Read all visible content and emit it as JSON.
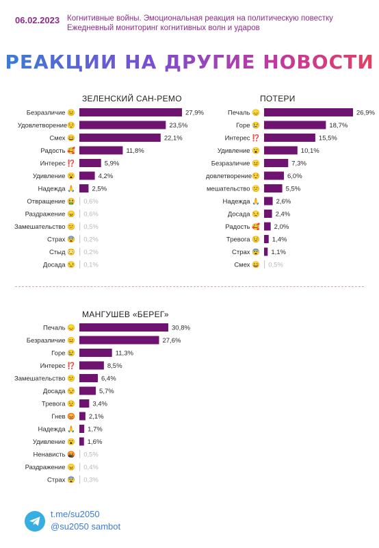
{
  "header": {
    "date": "06.02.2023",
    "line1": "Когнитивные войны. Эмоциональная реакция на политическую повестку",
    "line2": "Ежедневный мониторинг когнитивных волн и ударов"
  },
  "main_title": "РЕАКЦИИ НА ДРУГИЕ НОВОСТИ",
  "colors": {
    "bar": "#6e1470",
    "accent": "#8e2c8c",
    "faint_bar": "#cccccc"
  },
  "footer": {
    "link1": "t.me/su2050",
    "link2": "@su2050 sambot",
    "icon": "telegram-icon"
  },
  "chart_data": [
    {
      "type": "bar",
      "orientation": "horizontal",
      "title": "ЗЕЛЕНСКИЙ САН-РЕМО",
      "categories": [
        "Безразличие 😐",
        "Удовлетворение😌",
        "Смех 😄",
        "Радость 🥰",
        "Интерес ⁉️",
        "Удивление 😮",
        "Надежда 🙏",
        "Отвращение 🤮",
        "Раздражение 😠",
        "Замешательство 😕",
        "Страх 😨",
        "Стыд 😳",
        "Досада 😒"
      ],
      "values": [
        27.9,
        23.5,
        22.1,
        11.8,
        5.9,
        4.2,
        2.5,
        0.6,
        0.6,
        0.5,
        0.2,
        0.2,
        0.1
      ],
      "value_labels": [
        "27,9%",
        "23,5%",
        "22,1%",
        "11,8%",
        "5,9%",
        "4,2%",
        "2,5%",
        "0,6%",
        "0,6%",
        "0,5%",
        "0,2%",
        "0,2%",
        "0,1%"
      ]
    },
    {
      "type": "bar",
      "orientation": "horizontal",
      "title": "ПОТЕРИ",
      "categories": [
        "Печаль 😞",
        "Горе 😢",
        "Интерес ⁉️",
        "Удивление 😮",
        "Безразличие 😐",
        "довлетворение😌",
        "мешательство 😕",
        "Надежда 🙏",
        "Досада 😒",
        "Радость 🥰",
        "Тревога 😟",
        "Страх 😨",
        "Смех 😄"
      ],
      "values": [
        26.9,
        18.7,
        15.5,
        10.1,
        7.3,
        6.0,
        5.5,
        2.6,
        2.4,
        2.0,
        1.4,
        1.1,
        0.5
      ],
      "value_labels": [
        "26,9%",
        "18,7%",
        "15,5%",
        "10,1%",
        "7,3%",
        "6,0%",
        "5,5%",
        "2,6%",
        "2,4%",
        "2,0%",
        "1,4%",
        "1,1%",
        "0,5%"
      ]
    },
    {
      "type": "bar",
      "orientation": "horizontal",
      "title": "МАНГУШЕВ «БЕРЕГ»",
      "categories": [
        "Печаль 😞",
        "Безразличие 😐",
        "Горе 😢",
        "Интерес ⁉️",
        "Замешательство 😕",
        "Досада 😒",
        "Тревога 😟",
        "Гнев 😡",
        "Надежда 🙏",
        "Удивление 😮",
        "Ненависть 🤬",
        "Раздражение 😠",
        "Страх 😨"
      ],
      "values": [
        30.8,
        27.6,
        11.3,
        8.5,
        6.4,
        5.7,
        3.4,
        2.1,
        1.7,
        1.6,
        0.5,
        0.4,
        0.3
      ],
      "value_labels": [
        "30,8%",
        "27,6%",
        "11,3%",
        "8,5%",
        "6,4%",
        "5,7%",
        "3,4%",
        "2,1%",
        "1,7%",
        "1,6%",
        "0,5%",
        "0,4%",
        "0,3%"
      ]
    }
  ]
}
